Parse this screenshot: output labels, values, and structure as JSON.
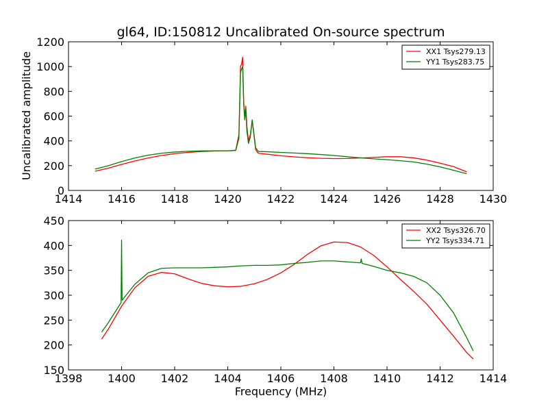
{
  "chart_data": [
    {
      "type": "line",
      "title": "gl64, ID:150812 Uncalibrated On-source spectrum",
      "xlabel": "",
      "ylabel": "Uncalibrated amplitude",
      "xlim": [
        1414,
        1430
      ],
      "ylim": [
        0,
        1200
      ],
      "xticks": [
        1414,
        1416,
        1418,
        1420,
        1422,
        1424,
        1426,
        1428,
        1430
      ],
      "yticks": [
        0,
        200,
        400,
        600,
        800,
        1000,
        1200
      ],
      "legend_position": "top-right",
      "series": [
        {
          "name": "XX1 Tsys279.13",
          "color": "#ff0000",
          "points": [
            [
              1415.0,
              155
            ],
            [
              1415.5,
              180
            ],
            [
              1416.0,
              210
            ],
            [
              1416.5,
              238
            ],
            [
              1417.0,
              262
            ],
            [
              1417.5,
              282
            ],
            [
              1418.0,
              297
            ],
            [
              1418.5,
              307
            ],
            [
              1419.0,
              314
            ],
            [
              1419.5,
              318
            ],
            [
              1420.0,
              320
            ],
            [
              1420.3,
              325
            ],
            [
              1420.42,
              450
            ],
            [
              1420.48,
              1000
            ],
            [
              1420.52,
              1020
            ],
            [
              1420.56,
              1075
            ],
            [
              1420.6,
              720
            ],
            [
              1420.64,
              600
            ],
            [
              1420.68,
              680
            ],
            [
              1420.72,
              520
            ],
            [
              1420.78,
              400
            ],
            [
              1420.85,
              450
            ],
            [
              1420.92,
              560
            ],
            [
              1420.98,
              460
            ],
            [
              1421.05,
              330
            ],
            [
              1421.15,
              300
            ],
            [
              1421.5,
              292
            ],
            [
              1422.0,
              280
            ],
            [
              1422.5,
              271
            ],
            [
              1423.0,
              264
            ],
            [
              1423.5,
              259
            ],
            [
              1424.0,
              257
            ],
            [
              1424.5,
              258
            ],
            [
              1425.0,
              262
            ],
            [
              1425.5,
              267
            ],
            [
              1426.0,
              272
            ],
            [
              1426.5,
              272
            ],
            [
              1427.0,
              263
            ],
            [
              1427.5,
              245
            ],
            [
              1428.0,
              220
            ],
            [
              1428.5,
              193
            ],
            [
              1429.0,
              150
            ]
          ]
        },
        {
          "name": "YY1 Tsys283.75",
          "color": "#008000",
          "points": [
            [
              1415.0,
              172
            ],
            [
              1415.5,
              200
            ],
            [
              1416.0,
              233
            ],
            [
              1416.5,
              262
            ],
            [
              1417.0,
              285
            ],
            [
              1417.5,
              300
            ],
            [
              1418.0,
              310
            ],
            [
              1418.5,
              316
            ],
            [
              1419.0,
              319
            ],
            [
              1419.5,
              320
            ],
            [
              1420.0,
              320
            ],
            [
              1420.3,
              322
            ],
            [
              1420.42,
              420
            ],
            [
              1420.48,
              950
            ],
            [
              1420.52,
              980
            ],
            [
              1420.56,
              1000
            ],
            [
              1420.6,
              700
            ],
            [
              1420.64,
              570
            ],
            [
              1420.68,
              650
            ],
            [
              1420.72,
              480
            ],
            [
              1420.78,
              380
            ],
            [
              1420.85,
              430
            ],
            [
              1420.92,
              570
            ],
            [
              1420.98,
              470
            ],
            [
              1421.05,
              345
            ],
            [
              1421.15,
              315
            ],
            [
              1421.5,
              312
            ],
            [
              1422.0,
              307
            ],
            [
              1422.5,
              302
            ],
            [
              1423.0,
              297
            ],
            [
              1423.5,
              290
            ],
            [
              1424.0,
              282
            ],
            [
              1424.5,
              272
            ],
            [
              1425.0,
              263
            ],
            [
              1425.5,
              255
            ],
            [
              1426.0,
              248
            ],
            [
              1426.5,
              240
            ],
            [
              1427.0,
              230
            ],
            [
              1427.5,
              212
            ],
            [
              1428.0,
              190
            ],
            [
              1428.5,
              163
            ],
            [
              1429.0,
              135
            ]
          ]
        }
      ]
    },
    {
      "type": "line",
      "title": "",
      "xlabel": "Frequency (MHz)",
      "ylabel": "",
      "xlim": [
        1398,
        1414
      ],
      "ylim": [
        150,
        450
      ],
      "xticks": [
        1398,
        1400,
        1402,
        1404,
        1406,
        1408,
        1410,
        1412,
        1414
      ],
      "yticks": [
        150,
        200,
        250,
        300,
        350,
        400,
        450
      ],
      "legend_position": "top-right",
      "series": [
        {
          "name": "XX2 Tsys326.70",
          "color": "#ff0000",
          "points": [
            [
              1399.25,
              212
            ],
            [
              1399.5,
              232
            ],
            [
              1400.0,
              278
            ],
            [
              1400.5,
              315
            ],
            [
              1401.0,
              338
            ],
            [
              1401.5,
              346
            ],
            [
              1402.0,
              343
            ],
            [
              1402.5,
              333
            ],
            [
              1403.0,
              324
            ],
            [
              1403.5,
              319
            ],
            [
              1404.0,
              317
            ],
            [
              1404.5,
              318
            ],
            [
              1405.0,
              323
            ],
            [
              1405.5,
              332
            ],
            [
              1406.0,
              345
            ],
            [
              1406.5,
              362
            ],
            [
              1407.0,
              382
            ],
            [
              1407.5,
              399
            ],
            [
              1408.0,
              407
            ],
            [
              1408.5,
              406
            ],
            [
              1409.0,
              397
            ],
            [
              1409.5,
              380
            ],
            [
              1410.0,
              357
            ],
            [
              1410.5,
              332
            ],
            [
              1411.0,
              308
            ],
            [
              1411.5,
              282
            ],
            [
              1412.0,
              250
            ],
            [
              1412.5,
              218
            ],
            [
              1413.0,
              185
            ],
            [
              1413.25,
              172
            ]
          ]
        },
        {
          "name": "YY2 Tsys334.71",
          "color": "#008000",
          "points": [
            [
              1399.25,
              226
            ],
            [
              1399.5,
              245
            ],
            [
              1399.98,
              285
            ],
            [
              1400.0,
              411
            ],
            [
              1400.02,
              290
            ],
            [
              1400.5,
              322
            ],
            [
              1401.0,
              345
            ],
            [
              1401.5,
              354
            ],
            [
              1402.0,
              355
            ],
            [
              1402.5,
              355
            ],
            [
              1403.0,
              355
            ],
            [
              1403.5,
              356
            ],
            [
              1404.0,
              357
            ],
            [
              1404.5,
              359
            ],
            [
              1405.0,
              360
            ],
            [
              1405.5,
              360
            ],
            [
              1406.0,
              361
            ],
            [
              1406.5,
              364
            ],
            [
              1407.0,
              366
            ],
            [
              1407.5,
              369
            ],
            [
              1408.0,
              369
            ],
            [
              1408.5,
              367
            ],
            [
              1409.0,
              365
            ],
            [
              1409.03,
              373
            ],
            [
              1409.06,
              364
            ],
            [
              1409.5,
              358
            ],
            [
              1410.0,
              350
            ],
            [
              1410.5,
              345
            ],
            [
              1411.0,
              338
            ],
            [
              1411.5,
              325
            ],
            [
              1412.0,
              300
            ],
            [
              1412.5,
              265
            ],
            [
              1413.0,
              215
            ],
            [
              1413.25,
              188
            ]
          ]
        }
      ]
    }
  ]
}
